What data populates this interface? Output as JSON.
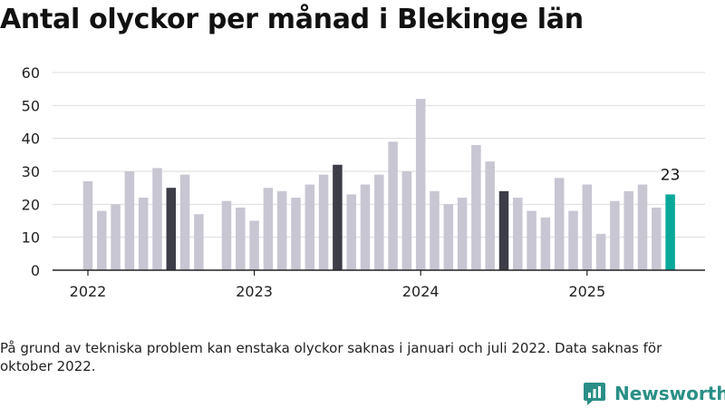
{
  "header": {
    "title": "Antal olyckor per månad i Blekinge län"
  },
  "footnote": "På grund av tekniska problem kan enstaka olyckor saknas i januari och juli 2022. Data saknas för oktober 2022.",
  "brand": {
    "name": "Newsworthy",
    "icon": "newsworthy-logo-icon"
  },
  "colors": {
    "default": "#c7c6d2",
    "july": "#3d3d48",
    "latest": "#0aa89a",
    "grid": "#dddddd",
    "axis": "#222222",
    "brand": "#2a8f86"
  },
  "chart_data": {
    "type": "bar",
    "title": "Antal olyckor per månad i Blekinge län",
    "xlabel": "",
    "ylabel": "",
    "ylim": [
      0,
      60
    ],
    "yticks": [
      "0",
      "10",
      "20",
      "30",
      "40",
      "50",
      "60"
    ],
    "xticks": [
      "2022",
      "2023",
      "2024",
      "2025"
    ],
    "grid": true,
    "legend": "none",
    "categories": [
      "2022-01",
      "2022-02",
      "2022-03",
      "2022-04",
      "2022-05",
      "2022-06",
      "2022-07",
      "2022-08",
      "2022-09",
      "2022-10",
      "2022-11",
      "2022-12",
      "2023-01",
      "2023-02",
      "2023-03",
      "2023-04",
      "2023-05",
      "2023-06",
      "2023-07",
      "2023-08",
      "2023-09",
      "2023-10",
      "2023-11",
      "2023-12",
      "2024-01",
      "2024-02",
      "2024-03",
      "2024-04",
      "2024-05",
      "2024-06",
      "2024-07",
      "2024-08",
      "2024-09",
      "2024-10",
      "2024-11",
      "2024-12",
      "2025-01",
      "2025-02",
      "2025-03",
      "2025-04",
      "2025-05",
      "2025-06",
      "2025-07"
    ],
    "values": [
      27,
      18,
      20,
      30,
      22,
      31,
      25,
      29,
      17,
      null,
      21,
      19,
      15,
      25,
      24,
      22,
      26,
      29,
      32,
      23,
      26,
      29,
      39,
      30,
      52,
      24,
      20,
      22,
      38,
      33,
      24,
      22,
      18,
      16,
      28,
      18,
      26,
      11,
      21,
      24,
      26,
      19,
      23
    ],
    "highlighted_months": [
      "2022-07",
      "2023-07",
      "2024-07"
    ],
    "latest": {
      "category": "2025-07",
      "label": "23"
    }
  }
}
